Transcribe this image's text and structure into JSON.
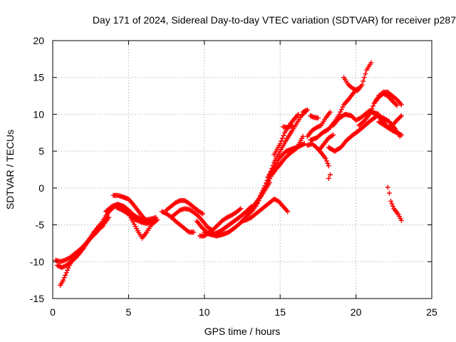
{
  "chart_data": {
    "type": "scatter",
    "title": "Day 171 of 2024, Sidereal Day-to-day VTEC variation (SDTVAR) for receiver p287",
    "xlabel": "GPS time / hours",
    "ylabel": "SDTVAR / TECUs",
    "xlim": [
      0,
      25
    ],
    "ylim": [
      -15,
      20
    ],
    "xticks": [
      0,
      5,
      10,
      15,
      20,
      25
    ],
    "yticks": [
      -15,
      -10,
      -5,
      0,
      5,
      10,
      15,
      20
    ],
    "xtick_labels": [
      "0",
      "5",
      "10",
      "15",
      "20",
      "25"
    ],
    "ytick_labels": [
      "-15",
      "-10",
      "-5",
      "0",
      "5",
      "10",
      "15",
      "20"
    ],
    "grid": true,
    "marker": "plus",
    "color": "#ff0000",
    "series": [
      {
        "points": [
          [
            0.2,
            -9.8
          ],
          [
            0.5,
            -10
          ],
          [
            0.8,
            -9.8
          ],
          [
            1.1,
            -9.5
          ],
          [
            1.4,
            -9
          ],
          [
            1.7,
            -8.5
          ],
          [
            2,
            -8
          ],
          [
            2.3,
            -7.3
          ],
          [
            2.6,
            -6.5
          ],
          [
            2.9,
            -5.5
          ],
          [
            3.2,
            -4.8
          ],
          [
            3.5,
            -3.8
          ],
          [
            3.8,
            -3
          ],
          [
            4.1,
            -2.5
          ],
          [
            4.4,
            -2.3
          ],
          [
            4.7,
            -2.5
          ],
          [
            5,
            -3
          ],
          [
            5.3,
            -3.6
          ],
          [
            5.6,
            -4
          ],
          [
            5.9,
            -4.2
          ],
          [
            6.2,
            -4.3
          ],
          [
            6.5,
            -4.2
          ],
          [
            6.8,
            -4
          ]
        ]
      },
      {
        "points": [
          [
            0.5,
            -13.2
          ],
          [
            0.7,
            -12.5
          ],
          [
            0.9,
            -11.5
          ],
          [
            1.1,
            -10.5
          ],
          [
            1.3,
            -9.8
          ],
          [
            1.6,
            -9
          ],
          [
            1.9,
            -8.2
          ],
          [
            2.2,
            -7.5
          ],
          [
            2.5,
            -6.8
          ],
          [
            2.8,
            -6.2
          ],
          [
            3.1,
            -5.5
          ],
          [
            3.4,
            -4.8
          ],
          [
            3.7,
            -4
          ]
        ]
      },
      {
        "points": [
          [
            0.3,
            -10.5
          ],
          [
            0.6,
            -10.8
          ],
          [
            0.9,
            -10.5
          ],
          [
            1.2,
            -10
          ],
          [
            1.5,
            -9.5
          ],
          [
            1.8,
            -8.8
          ],
          [
            2.1,
            -8
          ],
          [
            2.4,
            -7
          ],
          [
            2.7,
            -6
          ],
          [
            3,
            -5.5
          ],
          [
            3.3,
            -5.2
          ]
        ]
      },
      {
        "points": [
          [
            3.5,
            -3.2
          ],
          [
            3.9,
            -2.5
          ],
          [
            4.3,
            -2.2
          ],
          [
            4.7,
            -2.6
          ],
          [
            5,
            -3.5
          ],
          [
            5.3,
            -4.6
          ],
          [
            5.6,
            -5.8
          ],
          [
            5.9,
            -6.8
          ],
          [
            6.2,
            -6
          ],
          [
            6.5,
            -5
          ],
          [
            6.8,
            -4.5
          ]
        ]
      },
      {
        "points": [
          [
            4,
            -1
          ],
          [
            4.3,
            -1
          ],
          [
            4.6,
            -1.2
          ],
          [
            5,
            -1.5
          ],
          [
            5.3,
            -2.2
          ],
          [
            5.6,
            -3
          ],
          [
            5.9,
            -3.8
          ],
          [
            6.2,
            -4.5
          ],
          [
            6.5,
            -4.8
          ]
        ]
      },
      {
        "points": [
          [
            4.2,
            -2.6
          ],
          [
            4.6,
            -3
          ],
          [
            5,
            -3.5
          ],
          [
            5.4,
            -4.2
          ],
          [
            5.8,
            -4.6
          ],
          [
            6.2,
            -4.8
          ],
          [
            6.6,
            -4.6
          ],
          [
            6.9,
            -4.3
          ]
        ]
      },
      {
        "points": [
          [
            7.2,
            -3.2
          ],
          [
            7.5,
            -3.5
          ],
          [
            7.8,
            -3.9
          ],
          [
            8.1,
            -4.5
          ],
          [
            8.4,
            -5
          ],
          [
            8.7,
            -5.5
          ],
          [
            9,
            -6
          ],
          [
            9.3,
            -6
          ]
        ]
      },
      {
        "points": [
          [
            7.5,
            -3
          ],
          [
            7.8,
            -2.5
          ],
          [
            8.1,
            -2
          ],
          [
            8.4,
            -1.7
          ],
          [
            8.7,
            -1.7
          ],
          [
            9,
            -2.1
          ],
          [
            9.3,
            -2.6
          ],
          [
            9.6,
            -3.1
          ],
          [
            9.9,
            -3.5
          ]
        ]
      },
      {
        "points": [
          [
            7.8,
            -4
          ],
          [
            8.1,
            -3.5
          ],
          [
            8.4,
            -3
          ],
          [
            8.7,
            -2.8
          ],
          [
            9,
            -2.9
          ],
          [
            9.3,
            -3.3
          ],
          [
            9.6,
            -3.8
          ],
          [
            9.9,
            -4.5
          ],
          [
            10.2,
            -5.3
          ],
          [
            10.5,
            -5.7
          ]
        ]
      },
      {
        "points": [
          [
            9.5,
            -4.5
          ],
          [
            9.9,
            -5.5
          ],
          [
            10.3,
            -6.2
          ],
          [
            10.7,
            -6.2
          ],
          [
            11.1,
            -5.8
          ],
          [
            11.5,
            -5.2
          ],
          [
            11.9,
            -4.6
          ],
          [
            12.3,
            -4
          ],
          [
            12.7,
            -3.3
          ],
          [
            13.1,
            -2.5
          ]
        ]
      },
      {
        "points": [
          [
            9.7,
            -6.5
          ],
          [
            10,
            -6.5
          ],
          [
            10.3,
            -6.1
          ],
          [
            10.6,
            -5.6
          ],
          [
            10.9,
            -5
          ],
          [
            11.2,
            -4.4
          ],
          [
            11.5,
            -4
          ],
          [
            11.8,
            -3.7
          ],
          [
            12.1,
            -3.3
          ],
          [
            12.4,
            -2.8
          ]
        ]
      },
      {
        "points": [
          [
            10,
            -6
          ],
          [
            10.4,
            -6.3
          ],
          [
            10.8,
            -6.5
          ],
          [
            11.2,
            -6.3
          ],
          [
            11.6,
            -6
          ],
          [
            12,
            -5.4
          ],
          [
            12.4,
            -4.7
          ],
          [
            12.8,
            -3.8
          ],
          [
            13.2,
            -3
          ]
        ]
      },
      {
        "points": [
          [
            12.5,
            -4.5
          ],
          [
            12.8,
            -4.3
          ],
          [
            13.1,
            -4
          ],
          [
            13.4,
            -3.5
          ],
          [
            13.7,
            -3
          ],
          [
            14,
            -2.5
          ],
          [
            14.3,
            -2
          ],
          [
            14.6,
            -1.5
          ],
          [
            14.9,
            -1.8
          ],
          [
            15.2,
            -2.5
          ],
          [
            15.5,
            -3.2
          ]
        ]
      },
      {
        "points": [
          [
            12.8,
            -3.5
          ],
          [
            13.1,
            -2.8
          ],
          [
            13.4,
            -2
          ],
          [
            13.7,
            -1.2
          ],
          [
            14,
            -0.3
          ],
          [
            14.3,
            0.7
          ]
        ]
      },
      {
        "points": [
          [
            13.2,
            -3
          ],
          [
            13.5,
            -2
          ],
          [
            13.8,
            -0.8
          ],
          [
            14.1,
            0.3
          ],
          [
            14.4,
            1.6
          ],
          [
            14.7,
            2.5
          ],
          [
            15,
            3.2
          ]
        ]
      },
      {
        "points": [
          [
            13.4,
            -2.5
          ],
          [
            13.7,
            -1
          ],
          [
            14,
            0.3
          ],
          [
            14.3,
            1.8
          ],
          [
            14.6,
            3.5
          ],
          [
            15,
            5
          ],
          [
            15.4,
            6.5
          ],
          [
            15.8,
            7.8
          ],
          [
            16.1,
            8.8
          ],
          [
            16.4,
            9.8
          ],
          [
            16.7,
            10.4
          ]
        ]
      },
      {
        "points": [
          [
            14.2,
            1.5
          ],
          [
            14.6,
            2.8
          ],
          [
            15,
            4.2
          ],
          [
            15.4,
            5
          ],
          [
            15.8,
            5.3
          ],
          [
            16.2,
            5.6
          ],
          [
            16.6,
            6
          ]
        ]
      },
      {
        "points": [
          [
            14.5,
            2
          ],
          [
            14.9,
            3
          ],
          [
            15.3,
            4
          ],
          [
            15.7,
            4.8
          ],
          [
            16.1,
            5.4
          ],
          [
            16.5,
            7
          ]
        ]
      },
      {
        "points": [
          [
            14.6,
            4.5
          ],
          [
            15,
            6
          ],
          [
            15.3,
            7.5
          ],
          [
            15.6,
            8.5
          ],
          [
            15.9,
            9.3
          ],
          [
            16.2,
            10
          ]
        ]
      },
      {
        "points": [
          [
            16.5,
            10.3
          ],
          [
            16.8,
            10.6
          ]
        ]
      },
      {
        "points": [
          [
            17,
            9.8
          ],
          [
            17.2,
            9.6
          ],
          [
            17.5,
            9.5
          ]
        ]
      },
      {
        "points": [
          [
            15.2,
            8.3
          ],
          [
            15.5,
            8.2
          ],
          [
            15.8,
            8.5
          ]
        ]
      },
      {
        "points": [
          [
            16.8,
            5.8
          ],
          [
            17.1,
            6
          ],
          [
            17.4,
            5.5
          ],
          [
            17.7,
            4.8
          ],
          [
            18,
            4
          ],
          [
            18.2,
            3
          ],
          [
            18.3,
            1.8
          ],
          [
            18.2,
            1.3
          ]
        ]
      },
      {
        "points": [
          [
            16.8,
            7
          ],
          [
            17.1,
            7.8
          ],
          [
            17.4,
            8.2
          ],
          [
            17.7,
            8.5
          ],
          [
            18,
            9.5
          ],
          [
            18.3,
            10.3
          ]
        ]
      },
      {
        "points": [
          [
            17,
            6.5
          ],
          [
            17.4,
            6.8
          ],
          [
            17.8,
            7.5
          ],
          [
            18.2,
            8
          ],
          [
            18.6,
            9
          ],
          [
            18.9,
            10
          ],
          [
            19.2,
            11.3
          ],
          [
            19.5,
            12
          ],
          [
            19.8,
            12.8
          ],
          [
            20.1,
            13.5
          ]
        ]
      },
      {
        "points": [
          [
            17.6,
            5.2
          ],
          [
            17.9,
            6
          ],
          [
            18.2,
            6.8
          ],
          [
            18.5,
            7.2
          ]
        ]
      },
      {
        "points": [
          [
            18.2,
            5.5
          ],
          [
            18.6,
            5
          ],
          [
            19,
            5.5
          ],
          [
            19.4,
            6.5
          ],
          [
            19.8,
            7.2
          ],
          [
            20.2,
            7.8
          ],
          [
            20.6,
            8.5
          ],
          [
            21,
            9.2
          ],
          [
            21.4,
            9.8
          ],
          [
            21.8,
            9.5
          ],
          [
            22.2,
            9
          ],
          [
            22.6,
            8
          ],
          [
            22.9,
            7
          ]
        ]
      },
      {
        "points": [
          [
            18.5,
            8.5
          ],
          [
            18.9,
            9.5
          ],
          [
            19.3,
            10
          ],
          [
            19.7,
            9.8
          ],
          [
            20,
            9.2
          ],
          [
            20.3,
            9.5
          ],
          [
            20.6,
            10
          ],
          [
            20.9,
            10.5
          ],
          [
            21.2,
            10.2
          ],
          [
            21.5,
            10
          ]
        ]
      },
      {
        "points": [
          [
            19.2,
            15
          ],
          [
            19.5,
            14
          ],
          [
            19.8,
            13.5
          ],
          [
            20.1,
            13.2
          ],
          [
            20.4,
            14
          ],
          [
            20.7,
            16
          ],
          [
            21,
            17
          ]
        ]
      },
      {
        "points": [
          [
            20.2,
            8.5
          ],
          [
            20.5,
            9
          ],
          [
            20.9,
            10
          ],
          [
            21.2,
            11.5
          ],
          [
            21.5,
            12.5
          ],
          [
            21.8,
            13
          ],
          [
            22.1,
            13
          ],
          [
            22.4,
            12.5
          ],
          [
            22.7,
            12
          ],
          [
            23,
            11.3
          ]
        ]
      },
      {
        "points": [
          [
            20.6,
            10
          ],
          [
            21,
            10.3
          ],
          [
            21.4,
            10
          ],
          [
            21.8,
            9
          ],
          [
            22.1,
            8.2
          ],
          [
            22.4,
            7.8
          ],
          [
            22.7,
            7.5
          ],
          [
            23,
            7.2
          ]
        ]
      },
      {
        "points": [
          [
            21.2,
            11.5
          ],
          [
            21.5,
            12.3
          ],
          [
            21.8,
            12.8
          ],
          [
            22.1,
            12.5
          ],
          [
            22.4,
            11.8
          ],
          [
            22.7,
            11.2
          ]
        ]
      },
      {
        "points": [
          [
            21.5,
            9
          ],
          [
            21.8,
            8.6
          ],
          [
            22.1,
            8.2
          ],
          [
            22.4,
            8.5
          ],
          [
            22.7,
            9.2
          ],
          [
            23,
            9.8
          ]
        ]
      },
      {
        "points": [
          [
            22.1,
            0.1
          ],
          [
            22.2,
            -0.7
          ],
          [
            22.3,
            -1.8
          ],
          [
            22.5,
            -2.8
          ],
          [
            22.8,
            -3.6
          ],
          [
            23,
            -4.4
          ]
        ]
      }
    ]
  }
}
